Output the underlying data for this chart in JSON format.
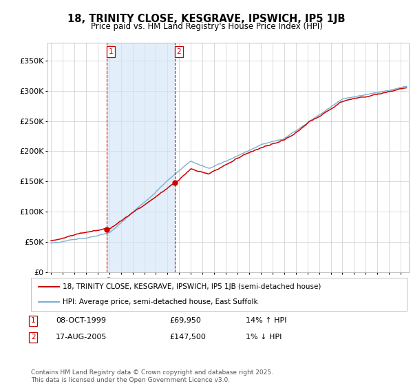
{
  "title": "18, TRINITY CLOSE, KESGRAVE, IPSWICH, IP5 1JB",
  "subtitle": "Price paid vs. HM Land Registry's House Price Index (HPI)",
  "background_color": "#ffffff",
  "plot_bg_color": "#ffffff",
  "grid_color": "#cccccc",
  "sale1": {
    "date": "08-OCT-1999",
    "price": 69950,
    "hpi_note": "14% ↑ HPI"
  },
  "sale2": {
    "date": "17-AUG-2005",
    "price": 147500,
    "hpi_note": "1% ↓ HPI"
  },
  "hpi_line_color": "#7bafd4",
  "hpi_fill_color": "#d0e4f5",
  "price_line_color": "#cc0000",
  "vline_color": "#cc0000",
  "legend_label_price": "18, TRINITY CLOSE, KESGRAVE, IPSWICH, IP5 1JB (semi-detached house)",
  "legend_label_hpi": "HPI: Average price, semi-detached house, East Suffolk",
  "ylim": [
    0,
    380000
  ],
  "yticks": [
    0,
    50000,
    100000,
    150000,
    200000,
    250000,
    300000,
    350000
  ],
  "ytick_labels": [
    "£0",
    "£50K",
    "£100K",
    "£150K",
    "£200K",
    "£250K",
    "£300K",
    "£350K"
  ],
  "footnote": "Contains HM Land Registry data © Crown copyright and database right 2025.\nThis data is licensed under the Open Government Licence v3.0.",
  "sale1_year": 1999.77,
  "sale2_year": 2005.63,
  "xmin": 1994.7,
  "xmax": 2025.7
}
